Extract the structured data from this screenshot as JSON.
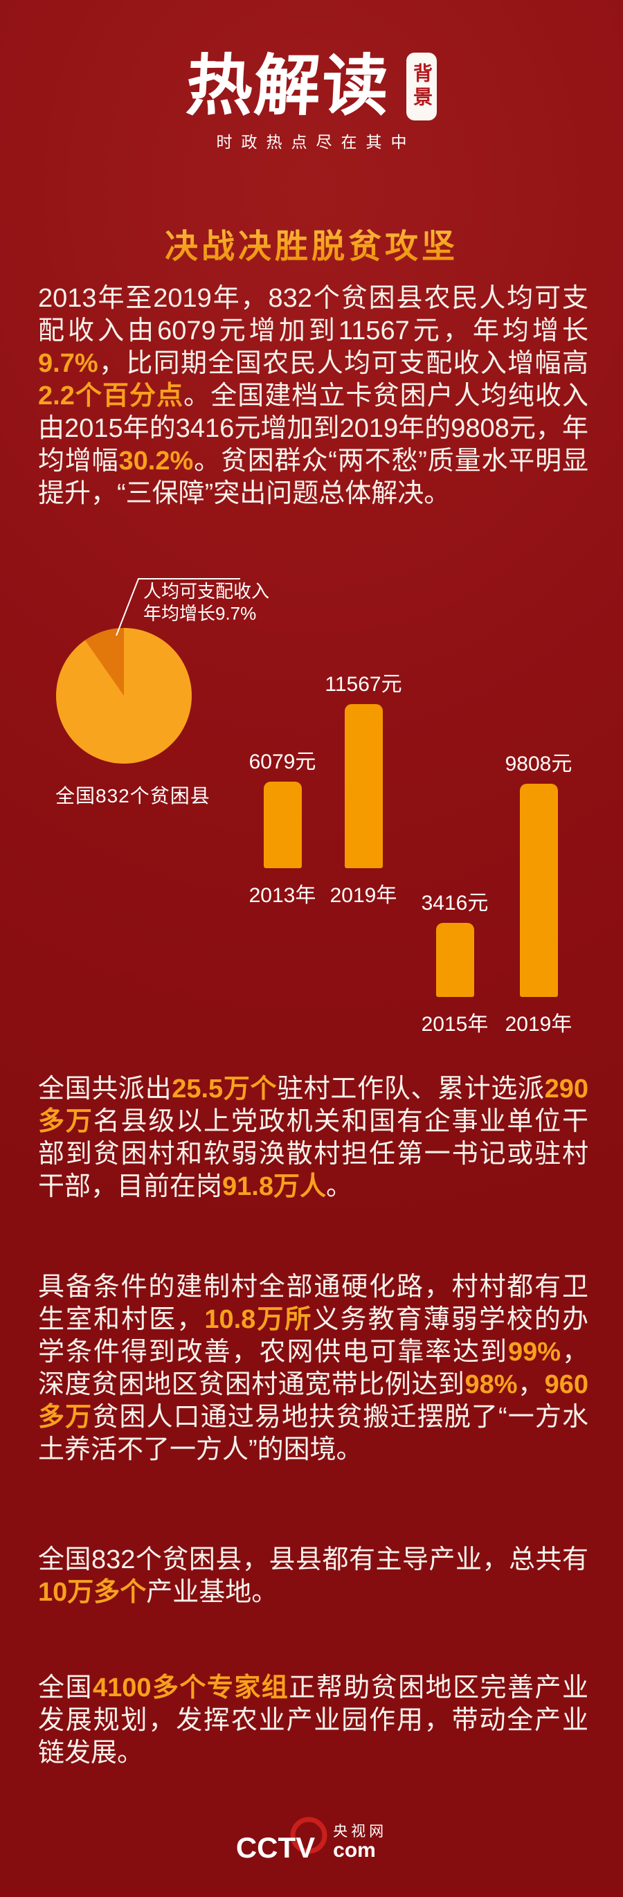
{
  "colors": {
    "background": "#8E1013",
    "highlight_orange": "#F7A11E",
    "bar_orange": "#F59B00",
    "pie_main": "#F8A41E",
    "pie_wedge": "#E2770B",
    "title_gold": "#F5A31C",
    "badge_red": "#B3191C",
    "ring_red": "#C9201D"
  },
  "header": {
    "logo_text": "热解读",
    "badge": "背景",
    "tagline": "时政热点尽在其中"
  },
  "section_title": "决战决胜脱贫攻坚",
  "paragraphs": {
    "p1": [
      {
        "t": "2013年至2019年，832个贫困县农民人均可支配收入由6079元增加到11567元，年均增长",
        "hl": false
      },
      {
        "t": "9.7%",
        "hl": true
      },
      {
        "t": "，比同期全国农民人均可支配收入增幅高",
        "hl": false
      },
      {
        "t": "2.2个百分点",
        "hl": true
      },
      {
        "t": "。全国建档立卡贫困户人均纯收入由2015年的3416元增加到2019年的9808元，年均增幅",
        "hl": false
      },
      {
        "t": "30.2%",
        "hl": true
      },
      {
        "t": "。贫困群众“两不愁”质量水平明显提升，“三保障”突出问题总体解决。",
        "hl": false
      }
    ],
    "p2": [
      {
        "t": "全国共派出",
        "hl": false
      },
      {
        "t": "25.5万个",
        "hl": true
      },
      {
        "t": "驻村工作队、累计选派",
        "hl": false
      },
      {
        "t": "290多万",
        "hl": true
      },
      {
        "t": "名县级以上党政机关和国有企事业单位干部到贫困村和软弱涣散村担任第一书记或驻村干部，目前在岗",
        "hl": false
      },
      {
        "t": "91.8万人",
        "hl": true
      },
      {
        "t": "。",
        "hl": false
      }
    ],
    "p3": [
      {
        "t": "具备条件的建制村全部通硬化路，村村都有卫生室和村医，",
        "hl": false
      },
      {
        "t": "10.8万所",
        "hl": true
      },
      {
        "t": "义务教育薄弱学校的办学条件得到改善，农网供电可靠率达到",
        "hl": false
      },
      {
        "t": "99%",
        "hl": true
      },
      {
        "t": "，深度贫困地区贫困村通宽带比例达到",
        "hl": false
      },
      {
        "t": "98%",
        "hl": true
      },
      {
        "t": "，",
        "hl": false
      },
      {
        "t": "960多万",
        "hl": true
      },
      {
        "t": "贫困人口通过易地扶贫搬迁摆脱了“一方水土养活不了一方人”的困境。",
        "hl": false
      }
    ],
    "p4": [
      {
        "t": "全国832个贫困县，县县都有主导产业，总共有",
        "hl": false
      },
      {
        "t": "10万多个",
        "hl": true
      },
      {
        "t": "产业基地。",
        "hl": false
      }
    ],
    "p5": [
      {
        "t": "全国",
        "hl": false
      },
      {
        "t": "4100多个专家组",
        "hl": true
      },
      {
        "t": "正帮助贫困地区完善产业发展规划，发挥农业产业园作用，带动全产业链发展。",
        "hl": false
      }
    ]
  },
  "chart_data": [
    {
      "type": "pie",
      "callout_line1": "人均可支配收入",
      "callout_line2": "年均增长9.7%",
      "label": "全国832个贫困县",
      "slices": [
        {
          "name": "人均可支配收入年均增长",
          "value": 9.7,
          "color": "#E2770B"
        },
        {
          "name": "其余",
          "value": 90.3,
          "color": "#F8A41E"
        }
      ]
    },
    {
      "type": "bar",
      "unit": "元",
      "groups": [
        {
          "bars": [
            {
              "category": "2013年",
              "value": 6079,
              "value_label": "6079元"
            },
            {
              "category": "2019年",
              "value": 11567,
              "value_label": "11567元"
            }
          ]
        },
        {
          "bars": [
            {
              "category": "2015年",
              "value": 3416,
              "value_label": "3416元"
            },
            {
              "category": "2019年",
              "value": 9808,
              "value_label": "9808元"
            }
          ]
        }
      ]
    }
  ],
  "footer": {
    "cctv": "CCTV",
    "site_cn": "央视网",
    "site_com": "com"
  }
}
